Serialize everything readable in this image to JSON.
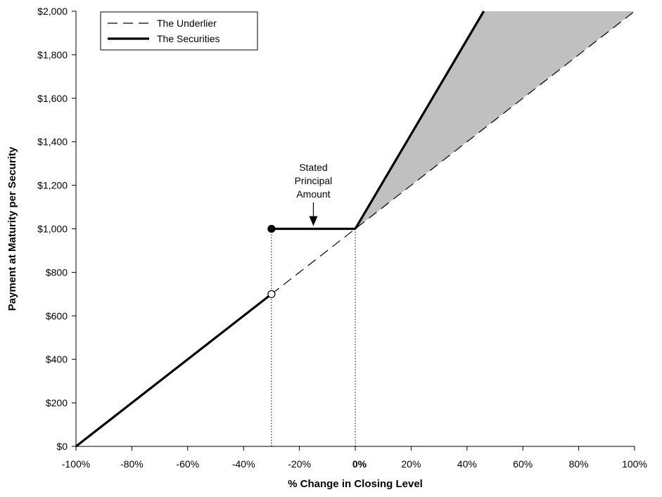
{
  "chart_data": {
    "type": "line",
    "title": "",
    "xlabel": "% Change in Closing Level",
    "ylabel": "Payment at Maturity per Security",
    "xlim": [
      -100,
      100
    ],
    "ylim": [
      0,
      2000
    ],
    "x_ticks": [
      {
        "value": -100,
        "label": "-100%"
      },
      {
        "value": -80,
        "label": "-80%"
      },
      {
        "value": -60,
        "label": "-60%"
      },
      {
        "value": -40,
        "label": "-40%"
      },
      {
        "value": -20,
        "label": "-20%"
      },
      {
        "value": 0,
        "label": "0%",
        "bold": true
      },
      {
        "value": 20,
        "label": "20%"
      },
      {
        "value": 40,
        "label": "40%"
      },
      {
        "value": 60,
        "label": "60%"
      },
      {
        "value": 80,
        "label": "80%"
      },
      {
        "value": 100,
        "label": "100%"
      }
    ],
    "y_ticks": [
      {
        "value": 0,
        "label": "$0"
      },
      {
        "value": 200,
        "label": "$200"
      },
      {
        "value": 400,
        "label": "$400"
      },
      {
        "value": 600,
        "label": "$600"
      },
      {
        "value": 800,
        "label": "$800"
      },
      {
        "value": 1000,
        "label": "$1,000"
      },
      {
        "value": 1200,
        "label": "$1,200"
      },
      {
        "value": 1400,
        "label": "$1,400"
      },
      {
        "value": 1600,
        "label": "$1,600"
      },
      {
        "value": 1800,
        "label": "$1,800"
      },
      {
        "value": 2000,
        "label": "$2,000"
      }
    ],
    "series": [
      {
        "name": "The Underlier",
        "style": "dashed",
        "color": "#000000",
        "x": [
          -100,
          100
        ],
        "y": [
          0,
          2000
        ]
      },
      {
        "name": "The Securities",
        "style": "solid-thick",
        "color": "#000000",
        "segments": [
          {
            "x": [
              -100,
              -30
            ],
            "y": [
              0,
              700
            ]
          },
          {
            "x": [
              -30,
              0
            ],
            "y": [
              1000,
              1000
            ]
          },
          {
            "x": [
              0,
              46
            ],
            "y": [
              1000,
              2000
            ]
          }
        ]
      }
    ],
    "markers": [
      {
        "x": -30,
        "y": 1000,
        "fill": "filled"
      },
      {
        "x": -30,
        "y": 700,
        "fill": "open"
      }
    ],
    "reference_lines": [
      {
        "x": -30,
        "y": 1000,
        "style": "dotted"
      },
      {
        "x": 0,
        "y": 1000,
        "style": "dotted"
      }
    ],
    "shaded_region": {
      "color": "#c0c0c0",
      "points": [
        [
          0,
          1000
        ],
        [
          46,
          2000
        ],
        [
          100,
          2000
        ]
      ]
    },
    "annotation": {
      "lines": [
        "Stated",
        "Principal",
        "Amount"
      ],
      "target": {
        "x": -15,
        "y": 1000
      }
    },
    "legend": {
      "placement": "top-left",
      "entries": [
        {
          "label": "The Underlier",
          "style": "dashed"
        },
        {
          "label": "The Securities",
          "style": "solid-thick"
        }
      ]
    },
    "grid": false
  }
}
